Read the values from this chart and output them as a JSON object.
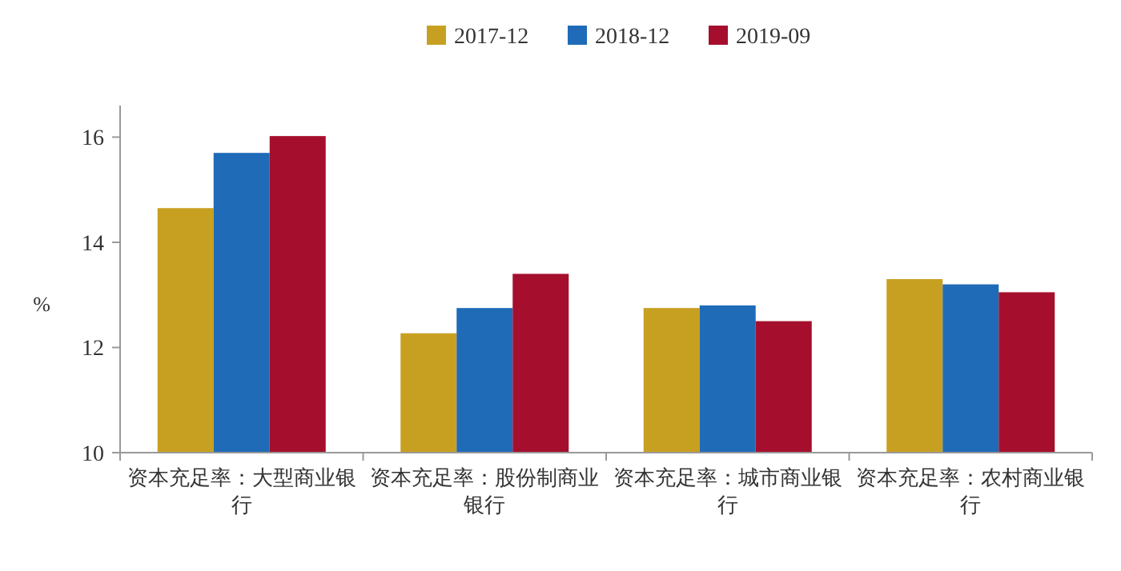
{
  "chart_data": {
    "type": "bar",
    "ylabel": "%",
    "categories": [
      "资本充足率：大型商业银行",
      "资本充足率：股份制商业银行",
      "资本充足率：城市商业银行",
      "资本充足率：农村商业银行"
    ],
    "series": [
      {
        "name": "2017-12",
        "color": "#c8a021",
        "values": [
          14.65,
          12.27,
          12.75,
          13.3
        ]
      },
      {
        "name": "2018-12",
        "color": "#1f6bb8",
        "values": [
          15.7,
          12.75,
          12.8,
          13.2
        ]
      },
      {
        "name": "2019-09",
        "color": "#a50f2d",
        "values": [
          16.02,
          13.4,
          12.5,
          13.05
        ]
      }
    ],
    "ylim": [
      10,
      16.6
    ],
    "yticks": [
      10,
      12,
      14,
      16
    ],
    "legend": "top",
    "grid": false
  }
}
